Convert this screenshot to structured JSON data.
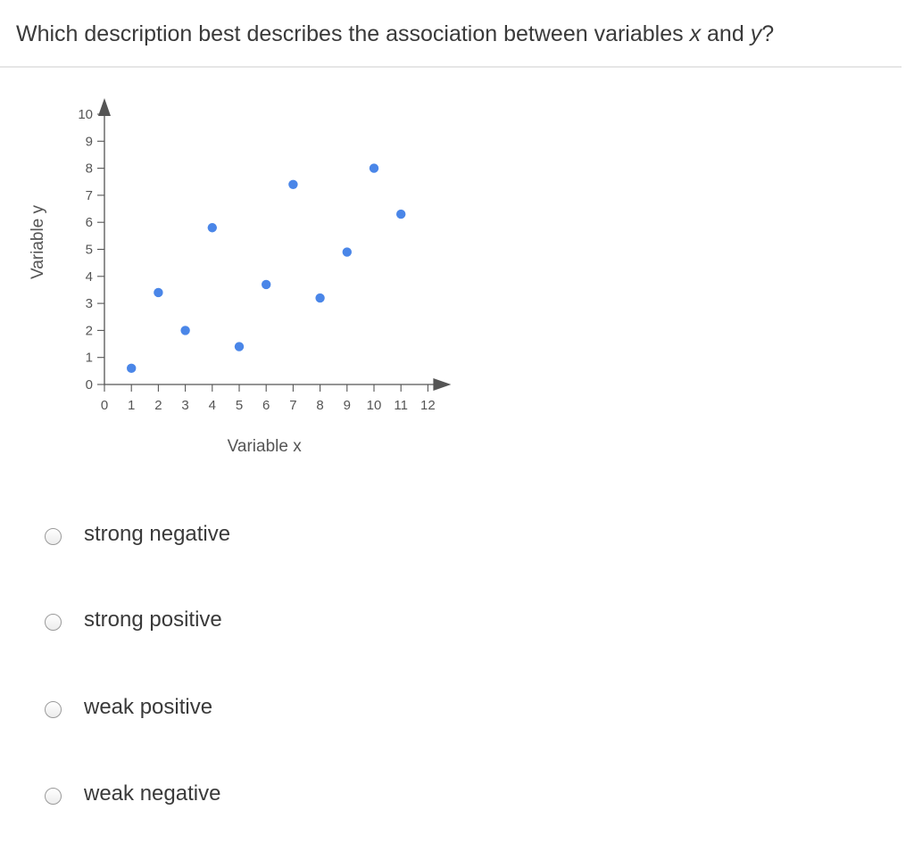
{
  "question": {
    "prefix": "Which description best describes the association between variables ",
    "var_x": "x",
    "middle": " and ",
    "var_y": "y",
    "suffix": "?"
  },
  "chart_data": {
    "type": "scatter",
    "xlabel": "Variable x",
    "ylabel": "Variable y",
    "x_ticks": [
      0,
      1,
      2,
      3,
      4,
      5,
      6,
      7,
      8,
      9,
      10,
      11,
      12
    ],
    "y_ticks": [
      0,
      1,
      2,
      3,
      4,
      5,
      6,
      7,
      8,
      9,
      10
    ],
    "xlim": [
      0,
      12
    ],
    "ylim": [
      0,
      10
    ],
    "points_color": "#4a86e8",
    "axis_color": "#555555",
    "points": [
      {
        "x": 1,
        "y": 0.6
      },
      {
        "x": 2,
        "y": 3.4
      },
      {
        "x": 3,
        "y": 2.0
      },
      {
        "x": 4,
        "y": 5.8
      },
      {
        "x": 5,
        "y": 1.4
      },
      {
        "x": 6,
        "y": 3.7
      },
      {
        "x": 7,
        "y": 7.4
      },
      {
        "x": 8,
        "y": 3.2
      },
      {
        "x": 9,
        "y": 4.9
      },
      {
        "x": 10,
        "y": 8.0
      },
      {
        "x": 11,
        "y": 6.3
      }
    ]
  },
  "options": [
    {
      "label": "strong negative"
    },
    {
      "label": "strong positive"
    },
    {
      "label": "weak positive"
    },
    {
      "label": "weak negative"
    }
  ]
}
